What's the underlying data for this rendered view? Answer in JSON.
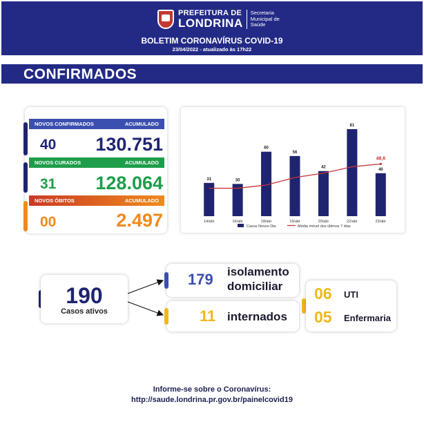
{
  "header": {
    "logo_line1": "PREFEITURA DE",
    "logo_line2": "LONDRINA",
    "secretaria_line1": "Secretaria",
    "secretaria_line2": "Municipal de",
    "secretaria_line3": "Saúde",
    "bulletin_title": "BOLETIM CORONAVÍRUS COVID-19",
    "bulletin_date": "23/04/2022 - atualizado às 17h22"
  },
  "section": {
    "title": "CONFIRMADOS"
  },
  "stats": {
    "confirmados": {
      "label": "NOVOS CONFIRMADOS",
      "acc_label": "ACUMULADO",
      "new": "40",
      "total": "130.751",
      "color": "#3a4fb0"
    },
    "curados": {
      "label": "NOVOS CURADOS",
      "acc_label": "ACUMULADO",
      "new": "31",
      "total": "128.064",
      "color": "#1e9e4a"
    },
    "obitos": {
      "label": "NOVOS ÓBITOS",
      "acc_label": "ACUMULADO",
      "new": "00",
      "total": "2.497",
      "color": "#f08a1c"
    }
  },
  "chart_data": {
    "type": "bar",
    "categories": [
      "14/abr",
      "16/abr",
      "18/abr",
      "19/abr",
      "20/abr",
      "22/abr",
      "23/abr"
    ],
    "series": [
      {
        "name": "Casos Novos Dia",
        "type": "bar",
        "color": "#1f2470",
        "values": [
          31,
          30,
          60,
          56,
          42,
          81,
          40
        ]
      },
      {
        "name": "Média móvel dos últimos 7 dias",
        "type": "line",
        "color": "#c8333a",
        "values": [
          26,
          26,
          29,
          36,
          40,
          46,
          48.6
        ]
      }
    ],
    "last_point_label": "48,6",
    "ylim": [
      0,
      90
    ],
    "legend_position": "bottom",
    "grid": false
  },
  "active": {
    "number": "190",
    "label": "Casos ativos"
  },
  "isolamento": {
    "number": "179",
    "line1": "isolamento",
    "line2": "domiciliar"
  },
  "internados": {
    "number": "11",
    "label": "internados"
  },
  "breakdown": {
    "uti_number": "06",
    "uti_label": "UTI",
    "enf_number": "05",
    "enf_label": "Enfermaria"
  },
  "footer": {
    "line1": "Informe-se sobre o Coronavírus:",
    "line2": "http://saude.londrina.pr.gov.br/painelcovid19"
  },
  "colors": {
    "navy": "#232a86",
    "dark_navy": "#1f2470",
    "blue": "#3a4fb0",
    "green": "#1e9e4a",
    "orange": "#f08a1c",
    "yellow": "#f1b71c",
    "red": "#c8333a"
  }
}
